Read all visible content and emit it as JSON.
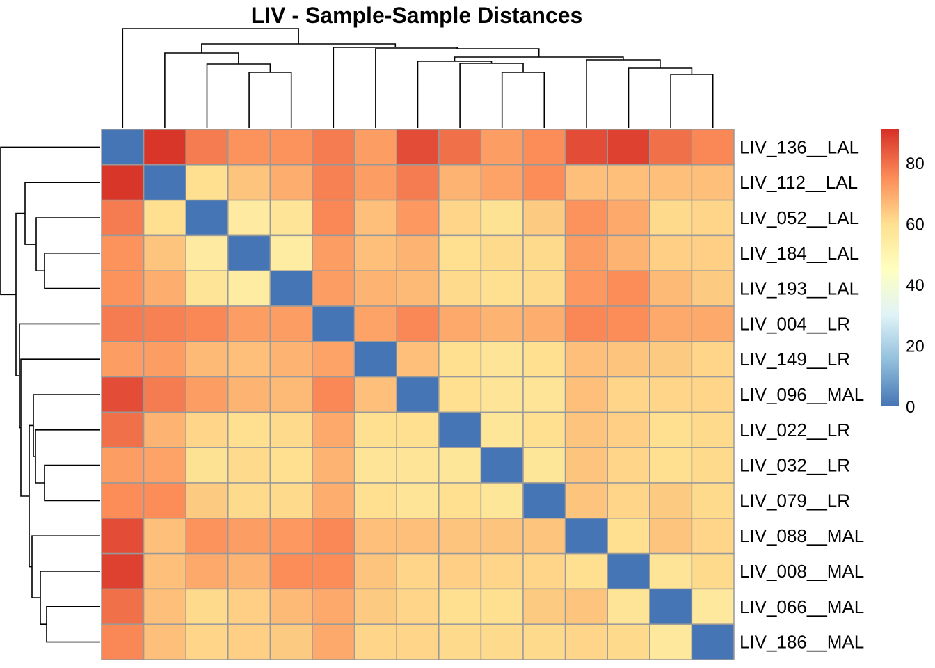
{
  "chart_data": {
    "type": "heatmap",
    "title": "LIV - Sample-Sample Distances",
    "labels": [
      "LIV_136__LAL",
      "LIV_112__LAL",
      "LIV_052__LAL",
      "LIV_184__LAL",
      "LIV_193__LAL",
      "LIV_004__LR",
      "LIV_149__LR",
      "LIV_096__MAL",
      "LIV_022__LR",
      "LIV_032__LR",
      "LIV_079__LR",
      "LIV_088__MAL",
      "LIV_008__MAL",
      "LIV_066__MAL",
      "LIV_186__MAL"
    ],
    "matrix": [
      [
        0,
        90,
        78,
        74,
        74,
        78,
        72,
        86,
        80,
        72,
        75,
        86,
        88,
        80,
        76
      ],
      [
        90,
        0,
        60,
        65,
        69,
        77,
        72,
        78,
        68,
        71,
        75,
        66,
        66,
        66,
        66
      ],
      [
        78,
        60,
        0,
        55,
        58,
        76,
        66,
        73,
        62,
        59,
        64,
        74,
        70,
        61,
        62
      ],
      [
        74,
        65,
        55,
        0,
        54,
        72,
        66,
        68,
        60,
        61,
        61,
        72,
        68,
        63,
        63
      ],
      [
        74,
        69,
        58,
        54,
        0,
        72,
        68,
        67,
        61,
        60,
        61,
        73,
        75,
        67,
        64
      ],
      [
        78,
        77,
        76,
        72,
        72,
        0,
        71,
        76,
        70,
        68,
        69,
        76,
        75,
        70,
        70
      ],
      [
        72,
        72,
        67,
        66,
        68,
        71,
        0,
        66,
        60,
        58,
        60,
        66,
        65,
        64,
        62
      ],
      [
        86,
        78,
        72,
        68,
        67,
        76,
        66,
        0,
        60,
        58,
        58,
        66,
        62,
        62,
        62
      ],
      [
        80,
        68,
        62,
        60,
        61,
        70,
        60,
        60,
        0,
        57,
        60,
        65,
        63,
        60,
        61
      ],
      [
        72,
        71,
        59,
        61,
        60,
        68,
        58,
        58,
        57,
        0,
        57,
        65,
        62,
        60,
        61
      ],
      [
        75,
        75,
        64,
        61,
        61,
        69,
        60,
        58,
        60,
        57,
        0,
        65,
        62,
        64,
        61
      ],
      [
        86,
        66,
        74,
        72,
        73,
        76,
        66,
        66,
        65,
        65,
        65,
        0,
        60,
        65,
        62
      ],
      [
        88,
        66,
        70,
        68,
        75,
        75,
        65,
        62,
        63,
        62,
        62,
        60,
        0,
        58,
        61
      ],
      [
        80,
        66,
        61,
        63,
        67,
        70,
        64,
        62,
        60,
        60,
        64,
        65,
        58,
        0,
        56
      ],
      [
        76,
        66,
        62,
        63,
        64,
        70,
        62,
        62,
        61,
        61,
        61,
        62,
        61,
        56,
        0
      ]
    ],
    "color_scale": {
      "min": 0,
      "max": 91,
      "stops": [
        [
          0,
          "#4575B4"
        ],
        [
          15,
          "#91BFDB"
        ],
        [
          30,
          "#E0F3F8"
        ],
        [
          45,
          "#FFFFBF"
        ],
        [
          60,
          "#FEE090"
        ],
        [
          75,
          "#FC8D59"
        ],
        [
          91,
          "#D73027"
        ]
      ],
      "ticks": [
        0,
        20,
        40,
        60,
        80
      ]
    },
    "grid": true,
    "legend": "right",
    "cell_border_color": "#999999",
    "column_order_matches_rows": true
  }
}
